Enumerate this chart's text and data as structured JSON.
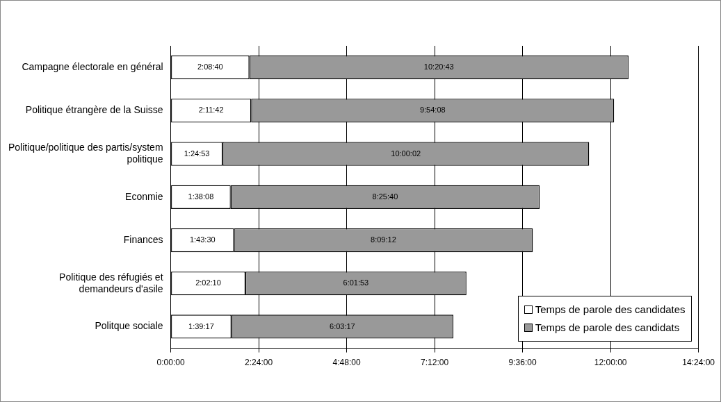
{
  "chart_data": {
    "type": "bar",
    "orientation": "horizontal",
    "stacked": true,
    "categories": [
      "Campagne électorale en général",
      "Politique étrangère de la Suisse",
      "Politique/politique des partis/system politique",
      "Econmie",
      "Finances",
      "Politique des réfugiés et demandeurs d'asile",
      "Politque sociale"
    ],
    "series": [
      {
        "name": "Temps de parole des candidates",
        "color": "#ffffff",
        "values": [
          7720,
          7902,
          5093,
          5888,
          6210,
          7330,
          5957
        ],
        "value_labels": [
          "2:08:40",
          "2:11:42",
          "1:24:53",
          "1:38:08",
          "1:43:30",
          "2:02:10",
          "1:39:17"
        ]
      },
      {
        "name": "Temps de parole des candidats",
        "color": "#999999",
        "values": [
          37243,
          35648,
          36002,
          30340,
          29352,
          21713,
          21797
        ],
        "value_labels": [
          "10:20:43",
          "9:54:08",
          "10:00:02",
          "8:25:40",
          "8:09:12",
          "6:01:53",
          "6:03:17"
        ]
      }
    ],
    "xlim": [
      0,
      51840
    ],
    "xticks": [
      {
        "value": 0,
        "label": "0:00:00"
      },
      {
        "value": 8640,
        "label": "2:24:00"
      },
      {
        "value": 17280,
        "label": "4:48:00"
      },
      {
        "value": 25920,
        "label": "7:12:00"
      },
      {
        "value": 34560,
        "label": "9:36:00"
      },
      {
        "value": 43200,
        "label": "12:00:00"
      },
      {
        "value": 51840,
        "label": "14:24:00"
      }
    ],
    "grid": "x",
    "legend": "bottom right"
  }
}
